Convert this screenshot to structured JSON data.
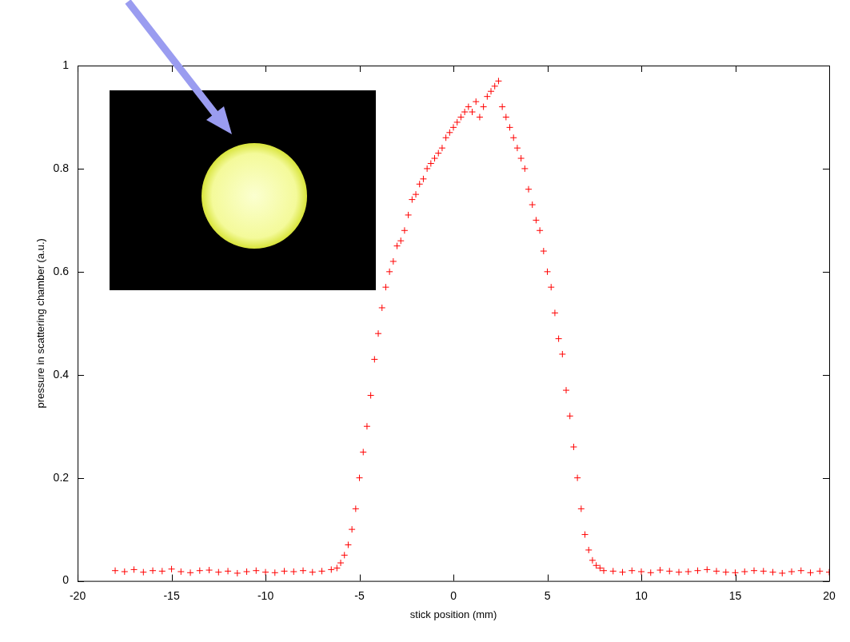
{
  "chart_data": {
    "type": "scatter",
    "x_label": "stick position (mm)",
    "y_label": "pressure in scattering chamber (a.u.)",
    "xlim": [
      -20,
      20
    ],
    "xticks": [
      -20,
      -15,
      -10,
      -5,
      0,
      5,
      10,
      15,
      20
    ],
    "ylim": [
      0,
      1
    ],
    "yticks": [
      0,
      0.2,
      0.4,
      0.6,
      0.8,
      1
    ],
    "grid": false,
    "series": [
      {
        "color": "#ff0000",
        "marker": "plus",
        "x": [
          -18,
          -17.5,
          -17,
          -16.5,
          -16,
          -15.5,
          -15,
          -14.5,
          -14,
          -13.5,
          -13,
          -12.5,
          -12,
          -11.5,
          -11,
          -10.5,
          -10,
          -9.5,
          -9,
          -8.5,
          -8,
          -7.5,
          -7,
          -6.5,
          -6.2,
          -6.0,
          -5.8,
          -5.6,
          -5.4,
          -5.2,
          -5.0,
          -4.8,
          -4.6,
          -4.4,
          -4.2,
          -4.0,
          -3.8,
          -3.6,
          -3.4,
          -3.2,
          -3.0,
          -2.8,
          -2.6,
          -2.4,
          -2.2,
          -2.0,
          -1.8,
          -1.6,
          -1.4,
          -1.2,
          -1.0,
          -0.8,
          -0.6,
          -0.4,
          -0.2,
          0.0,
          0.2,
          0.4,
          0.6,
          0.8,
          1.0,
          1.2,
          1.4,
          1.6,
          1.8,
          2.0,
          2.2,
          2.4,
          2.6,
          2.8,
          3.0,
          3.2,
          3.4,
          3.6,
          3.8,
          4.0,
          4.2,
          4.4,
          4.6,
          4.8,
          5.0,
          5.2,
          5.4,
          5.6,
          5.8,
          6.0,
          6.2,
          6.4,
          6.6,
          6.8,
          7.0,
          7.2,
          7.4,
          7.6,
          7.8,
          8,
          8.5,
          9,
          9.5,
          10,
          10.5,
          11,
          11.5,
          12,
          12.5,
          13,
          13.5,
          14,
          14.5,
          15,
          15.5,
          16,
          16.5,
          17,
          17.5,
          18,
          18.5,
          19,
          19.5,
          20
        ],
        "values": [
          0.02,
          0.018,
          0.022,
          0.017,
          0.02,
          0.019,
          0.023,
          0.018,
          0.016,
          0.02,
          0.021,
          0.017,
          0.019,
          0.015,
          0.018,
          0.02,
          0.017,
          0.016,
          0.019,
          0.018,
          0.02,
          0.017,
          0.019,
          0.022,
          0.025,
          0.035,
          0.05,
          0.07,
          0.1,
          0.14,
          0.2,
          0.25,
          0.3,
          0.36,
          0.43,
          0.48,
          0.53,
          0.57,
          0.6,
          0.62,
          0.65,
          0.66,
          0.68,
          0.71,
          0.74,
          0.75,
          0.77,
          0.78,
          0.8,
          0.81,
          0.82,
          0.83,
          0.84,
          0.86,
          0.87,
          0.88,
          0.89,
          0.9,
          0.91,
          0.92,
          0.91,
          0.93,
          0.9,
          0.92,
          0.94,
          0.95,
          0.96,
          0.97,
          0.92,
          0.9,
          0.88,
          0.86,
          0.84,
          0.82,
          0.8,
          0.76,
          0.73,
          0.7,
          0.68,
          0.64,
          0.6,
          0.57,
          0.52,
          0.47,
          0.44,
          0.37,
          0.32,
          0.26,
          0.2,
          0.14,
          0.09,
          0.06,
          0.04,
          0.03,
          0.025,
          0.02,
          0.019,
          0.017,
          0.02,
          0.018,
          0.016,
          0.021,
          0.019,
          0.017,
          0.018,
          0.02,
          0.022,
          0.019,
          0.017,
          0.016,
          0.018,
          0.02,
          0.019,
          0.017,
          0.015,
          0.018,
          0.02,
          0.016,
          0.019,
          0.017
        ]
      }
    ]
  }
}
